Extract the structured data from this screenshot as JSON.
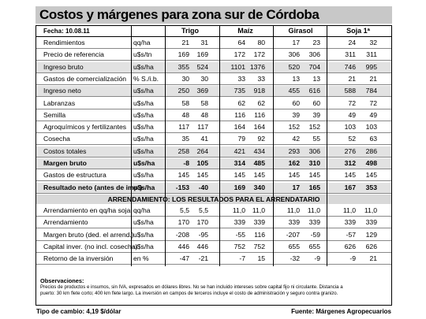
{
  "title": "Costos y márgenes para zona sur de Córdoba",
  "date": "Fecha: 10.08.11",
  "crops": [
    "Trigo",
    "Maíz",
    "Girasol",
    "Soja 1ª"
  ],
  "rows": [
    {
      "label": "Rendimientos",
      "unit": "qq/ha",
      "v": [
        "21",
        "31",
        "64",
        "80",
        "17",
        "23",
        "24",
        "32"
      ]
    },
    {
      "label": "Precio de referencia",
      "unit": "u$s/tn",
      "v": [
        "169",
        "169",
        "172",
        "172",
        "306",
        "306",
        "311",
        "311"
      ]
    },
    {
      "label": "Ingreso bruto",
      "unit": "u$s/ha",
      "v": [
        "355",
        "524",
        "1101",
        "1376",
        "520",
        "704",
        "746",
        "995"
      ],
      "shade": true
    },
    {
      "label": "Gastos de comercialización",
      "unit": "% S./i.b.",
      "v": [
        "30",
        "30",
        "33",
        "33",
        "13",
        "13",
        "21",
        "21"
      ]
    },
    {
      "label": "Ingreso neto",
      "unit": "u$s/ha",
      "v": [
        "250",
        "369",
        "735",
        "918",
        "455",
        "616",
        "588",
        "784"
      ],
      "shade": true
    },
    {
      "label": "Labranzas",
      "unit": "u$s/ha",
      "v": [
        "58",
        "58",
        "62",
        "62",
        "60",
        "60",
        "72",
        "72"
      ]
    },
    {
      "label": "Semilla",
      "unit": "u$s/ha",
      "v": [
        "48",
        "48",
        "116",
        "116",
        "39",
        "39",
        "49",
        "49"
      ]
    },
    {
      "label": "Agroquímicos y fertilizantes",
      "unit": "u$s/ha",
      "v": [
        "117",
        "117",
        "164",
        "164",
        "152",
        "152",
        "103",
        "103"
      ]
    },
    {
      "label": "Cosecha",
      "unit": "u$s/ha",
      "v": [
        "35",
        "41",
        "79",
        "92",
        "42",
        "55",
        "52",
        "63"
      ]
    },
    {
      "label": "Costos totales",
      "unit": "u$s/ha",
      "v": [
        "258",
        "264",
        "421",
        "434",
        "293",
        "306",
        "276",
        "286"
      ],
      "shade": true
    },
    {
      "label": "Margen bruto",
      "unit": "u$s/ha",
      "v": [
        "-8",
        "105",
        "314",
        "485",
        "162",
        "310",
        "312",
        "498"
      ],
      "bold": true,
      "shade": true
    },
    {
      "label": "Gastos de estructura",
      "unit": "u$s/ha",
      "v": [
        "145",
        "145",
        "145",
        "145",
        "145",
        "145",
        "145",
        "145"
      ]
    },
    {
      "label": "Resultado neto (antes de imp.)",
      "unit": "u$s/ha",
      "v": [
        "-153",
        "-40",
        "169",
        "340",
        "17",
        "165",
        "167",
        "353"
      ],
      "bold": true,
      "shade": true
    }
  ],
  "arr_header": "ARRENDAMIENTO: LOS RESULTADOS PARA EL ARRENDATARIO",
  "arr_rows": [
    {
      "label": "Arrendamiento en qq/ha soja",
      "unit": "qq/ha",
      "v": [
        "5,5",
        "5,5",
        "11,0",
        "11,0",
        "11,0",
        "11,0",
        "11,0",
        "11,0"
      ]
    },
    {
      "label": "Arrendamiento",
      "unit": "u$s/ha",
      "v": [
        "170",
        "170",
        "339",
        "339",
        "339",
        "339",
        "339",
        "339"
      ]
    },
    {
      "label": "Margen bruto (ded. el arrend.)",
      "unit": "u$s/ha",
      "v": [
        "-208",
        "-95",
        "-55",
        "116",
        "-207",
        "-59",
        "-57",
        "129"
      ]
    },
    {
      "label": "Capital inver. (no incl. cosecha)",
      "unit": "u$s/ha",
      "v": [
        "446",
        "446",
        "752",
        "752",
        "655",
        "655",
        "626",
        "626"
      ]
    },
    {
      "label": "Retorno de la inversión",
      "unit": "en %",
      "v": [
        "-47",
        "-21",
        "-7",
        "15",
        "-32",
        "-9",
        "-9",
        "21"
      ]
    }
  ],
  "observations_title": "Observaciones:",
  "observations_lines": [
    "Precios de productos e insumos, sin IVA, expresados en dólares libres. No se han incluido intereses sobre capital fijo ni circulante. Distancia a",
    "puerto: 30 km  flete corto; 400 km flete largo. La inversión en campos de terceros incluye el costo de administración y seguro contra granizo."
  ],
  "exchange": "Tipo de cambio: 4,19  $/dólar",
  "source": "Fuente: Márgenes Agropecuarios"
}
